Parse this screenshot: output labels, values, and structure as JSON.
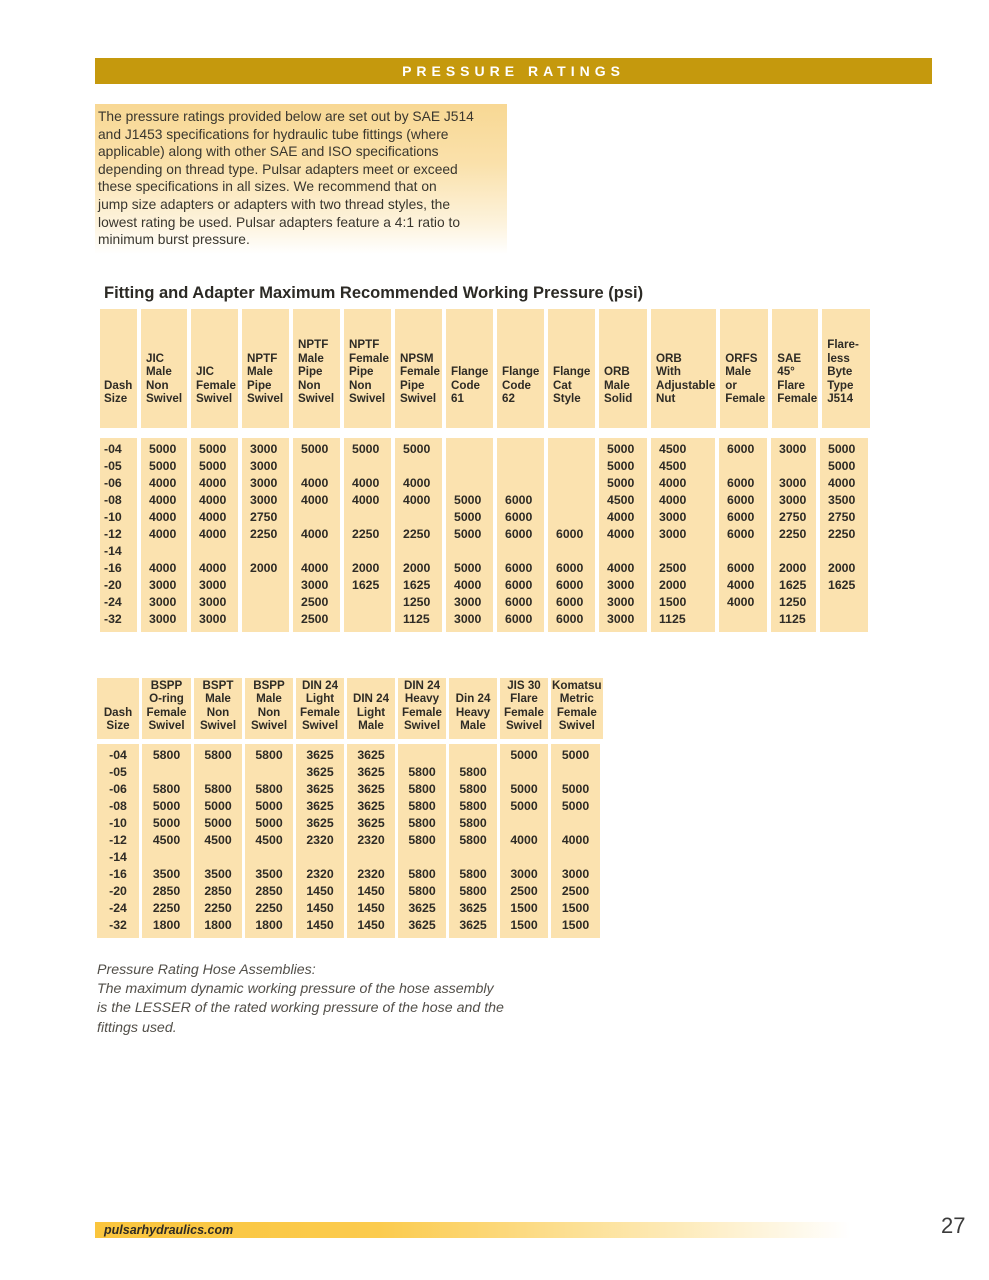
{
  "banner": {
    "title": "PRESSURE RATINGS"
  },
  "intro": {
    "lines": [
      "The pressure ratings provided below are set out by SAE J514",
      "and J1453 specifications for hydraulic tube fittings (where",
      "applicable) along with other SAE and ISO specifications",
      "depending on thread type. Pulsar adapters meet or exceed",
      "these specifications in all sizes. We recommend that on",
      "jump size adapters or adapters with two thread styles, the",
      "lowest rating be used. Pulsar adapters feature a 4:1 ratio to",
      "minimum burst pressure."
    ]
  },
  "colors": {
    "banner_gold": "#c5990d",
    "table_cell_bg": "#fbe2af",
    "footer_bar_gold": "#fac53d",
    "text_dark": "#2e2b25"
  },
  "table1": {
    "title": "Fitting and Adapter Maximum Recommended Working Pressure (psi)",
    "columns": [
      "Dash\nSize",
      "JIC\nMale\nNon\nSwivel",
      "JIC\nFemale\nSwivel",
      "NPTF\nMale\nPipe\nSwivel",
      "NPTF\nMale\nPipe\nNon\nSwivel",
      "NPTF\nFemale\nPipe\nNon\nSwivel",
      "NPSM\nFemale\nPipe\nSwivel",
      "Flange\nCode\n61",
      "Flange\nCode\n62",
      "Flange\nCat\nStyle",
      "ORB\nMale\nSolid",
      "ORB\nWith\nAdjustable\nNut",
      "ORFS\nMale\nor\nFemale",
      "SAE\n45°\nFlare\nFemale",
      "Flare-\nless\nByte\nType\nJ514"
    ],
    "rows": [
      [
        "-04",
        "5000",
        "5000",
        "3000",
        "5000",
        "5000",
        "5000",
        "",
        "",
        "",
        "5000",
        "4500",
        "6000",
        "3000",
        "5000"
      ],
      [
        "-05",
        "5000",
        "5000",
        "3000",
        "",
        "",
        "",
        "",
        "",
        "",
        "5000",
        "4500",
        "",
        "",
        "5000"
      ],
      [
        "-06",
        "4000",
        "4000",
        "3000",
        "4000",
        "4000",
        "4000",
        "",
        "",
        "",
        "5000",
        "4000",
        "6000",
        "3000",
        "4000"
      ],
      [
        "-08",
        "4000",
        "4000",
        "3000",
        "4000",
        "4000",
        "4000",
        "5000",
        "6000",
        "",
        "4500",
        "4000",
        "6000",
        "3000",
        "3500"
      ],
      [
        "-10",
        "4000",
        "4000",
        "2750",
        "",
        "",
        "",
        "5000",
        "6000",
        "",
        "4000",
        "3000",
        "6000",
        "2750",
        "2750"
      ],
      [
        "-12",
        "4000",
        "4000",
        "2250",
        "4000",
        "2250",
        "2250",
        "5000",
        "6000",
        "6000",
        "4000",
        "3000",
        "6000",
        "2250",
        "2250"
      ],
      [
        "-14",
        "",
        "",
        "",
        "",
        "",
        "",
        "",
        "",
        "",
        "",
        "",
        "",
        "",
        ""
      ],
      [
        "-16",
        "4000",
        "4000",
        "2000",
        "4000",
        "2000",
        "2000",
        "5000",
        "6000",
        "6000",
        "4000",
        "2500",
        "6000",
        "2000",
        "2000"
      ],
      [
        "-20",
        "3000",
        "3000",
        "",
        "3000",
        "1625",
        "1625",
        "4000",
        "6000",
        "6000",
        "3000",
        "2000",
        "4000",
        "1625",
        "1625"
      ],
      [
        "-24",
        "3000",
        "3000",
        "",
        "2500",
        "",
        "1250",
        "3000",
        "6000",
        "6000",
        "3000",
        "1500",
        "4000",
        "1250",
        ""
      ],
      [
        "-32",
        "3000",
        "3000",
        "",
        "2500",
        "",
        "1125",
        "3000",
        "6000",
        "6000",
        "3000",
        "1125",
        "",
        "1125",
        ""
      ]
    ]
  },
  "table2": {
    "columns": [
      "Dash\nSize",
      "BSPP\nO-ring\nFemale\nSwivel",
      "BSPT\nMale\nNon\nSwivel",
      "BSPP\nMale\nNon\nSwivel",
      "DIN 24\nLight\nFemale\nSwivel",
      "DIN 24\nLight\nMale",
      "DIN 24\nHeavy\nFemale\nSwivel",
      "Din 24\nHeavy\nMale",
      "JIS 30\nFlare\nFemale\nSwivel",
      "Komatsu\nMetric\nFemale\nSwivel"
    ],
    "rows": [
      [
        "-04",
        "5800",
        "5800",
        "5800",
        "3625",
        "3625",
        "",
        "",
        "5000",
        "5000"
      ],
      [
        "-05",
        "",
        "",
        "",
        "3625",
        "3625",
        "5800",
        "5800",
        "",
        ""
      ],
      [
        "-06",
        "5800",
        "5800",
        "5800",
        "3625",
        "3625",
        "5800",
        "5800",
        "5000",
        "5000"
      ],
      [
        "-08",
        "5000",
        "5000",
        "5000",
        "3625",
        "3625",
        "5800",
        "5800",
        "5000",
        "5000"
      ],
      [
        "-10",
        "5000",
        "5000",
        "5000",
        "3625",
        "3625",
        "5800",
        "5800",
        "",
        ""
      ],
      [
        "-12",
        "4500",
        "4500",
        "4500",
        "2320",
        "2320",
        "5800",
        "5800",
        "4000",
        "4000"
      ],
      [
        "-14",
        "",
        "",
        "",
        "",
        "",
        "",
        "",
        "",
        ""
      ],
      [
        "-16",
        "3500",
        "3500",
        "3500",
        "2320",
        "2320",
        "5800",
        "5800",
        "3000",
        "3000"
      ],
      [
        "-20",
        "2850",
        "2850",
        "2850",
        "1450",
        "1450",
        "5800",
        "5800",
        "2500",
        "2500"
      ],
      [
        "-24",
        "2250",
        "2250",
        "2250",
        "1450",
        "1450",
        "3625",
        "3625",
        "1500",
        "1500"
      ],
      [
        "-32",
        "1800",
        "1800",
        "1800",
        "1450",
        "1450",
        "3625",
        "3625",
        "1500",
        "1500"
      ]
    ]
  },
  "footnote": {
    "lines": [
      "Pressure Rating Hose Assemblies:",
      "The maximum dynamic working pressure of the hose assembly",
      "is the LESSER of the rated working pressure of the hose and the",
      "fittings used."
    ]
  },
  "footer": {
    "site": "pulsarhydraulics.com",
    "page_number": "27"
  }
}
